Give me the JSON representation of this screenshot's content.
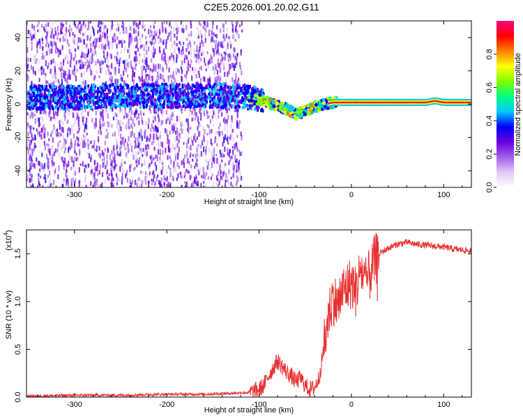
{
  "figure_title": "C2E5.2026.001.20.02.G11",
  "chart_data": [
    {
      "type": "heatmap",
      "title": "C2E5.2026.001.20.02.G11",
      "xlabel": "Height of straight line (km)",
      "ylabel": "Frequency (Hz)",
      "xlim": [
        -352,
        130
      ],
      "ylim": [
        -50,
        50
      ],
      "xticks": [
        -300,
        -200,
        -100,
        0,
        100
      ],
      "yticks": [
        -40,
        -20,
        0,
        20,
        40
      ],
      "xtick_labels": [
        "-300",
        "-200",
        "-100",
        "0",
        "100"
      ],
      "ytick_labels": [
        "-40",
        "-20",
        "0",
        "20",
        "40"
      ],
      "grid": false,
      "signal_track": {
        "x": [
          -352,
          -300,
          -250,
          -200,
          -150,
          -120,
          -100,
          -90,
          -80,
          -70,
          -60,
          -50,
          -40,
          -30,
          -20,
          -10,
          0,
          20,
          50,
          80,
          90,
          100,
          130
        ],
        "frequency": [
          4,
          4,
          5,
          5,
          5,
          5,
          3,
          1,
          -1,
          -3,
          -6,
          -4,
          -2,
          0,
          1,
          1,
          1,
          1,
          1,
          1,
          2,
          1,
          1
        ]
      },
      "colorbar": {
        "label": "Normalized spectral amplitude",
        "range": [
          0,
          1
        ],
        "ticks": [
          0.0,
          0.2,
          0.4,
          0.6,
          0.8
        ],
        "tick_labels": [
          "0.0",
          "0.2",
          "0.4",
          "0.6",
          "0.8"
        ],
        "colormap": [
          "#ffffff",
          "#e0c8f8",
          "#a060e8",
          "#6a00e0",
          "#0000ff",
          "#00c8ff",
          "#00ff80",
          "#80ff00",
          "#ffff00",
          "#ff8000",
          "#ff0000",
          "#ff0080"
        ]
      }
    },
    {
      "type": "line",
      "xlabel": "Height of straight line (km)",
      "ylabel": "SNR (10 * v/v)",
      "yscale_label": "(x10",
      "yscale_exponent": "4",
      "yscale_suffix": ")",
      "xlim": [
        -352,
        130
      ],
      "ylim": [
        0,
        1.75
      ],
      "xticks": [
        -300,
        -200,
        -100,
        0,
        100
      ],
      "yticks": [
        0.0,
        0.5,
        1.0,
        1.5
      ],
      "xtick_labels": [
        "-300",
        "-200",
        "-100",
        "0",
        "100"
      ],
      "ytick_labels": [
        "0.0",
        "0.5",
        "1.0",
        "1.5"
      ],
      "color": "#e83030",
      "series": [
        {
          "name": "SNR",
          "x": [
            -352,
            -300,
            -250,
            -200,
            -160,
            -130,
            -110,
            -100,
            -95,
            -90,
            -85,
            -80,
            -75,
            -70,
            -65,
            -60,
            -55,
            -50,
            -45,
            -40,
            -35,
            -30,
            -25,
            -20,
            -15,
            -10,
            -5,
            0,
            5,
            10,
            15,
            20,
            25,
            30,
            40,
            50,
            60,
            70,
            80,
            90,
            100,
            110,
            120,
            130
          ],
          "y": [
            0.01,
            0.02,
            0.02,
            0.03,
            0.03,
            0.04,
            0.05,
            0.08,
            0.12,
            0.22,
            0.3,
            0.38,
            0.32,
            0.26,
            0.22,
            0.16,
            0.2,
            0.12,
            0.08,
            0.1,
            0.2,
            0.5,
            0.85,
            1.05,
            0.95,
            1.1,
            1.15,
            1.2,
            1.1,
            1.35,
            1.2,
            1.28,
            1.42,
            1.5,
            1.56,
            1.6,
            1.62,
            1.6,
            1.59,
            1.58,
            1.57,
            1.55,
            1.54,
            1.53
          ]
        }
      ]
    }
  ]
}
